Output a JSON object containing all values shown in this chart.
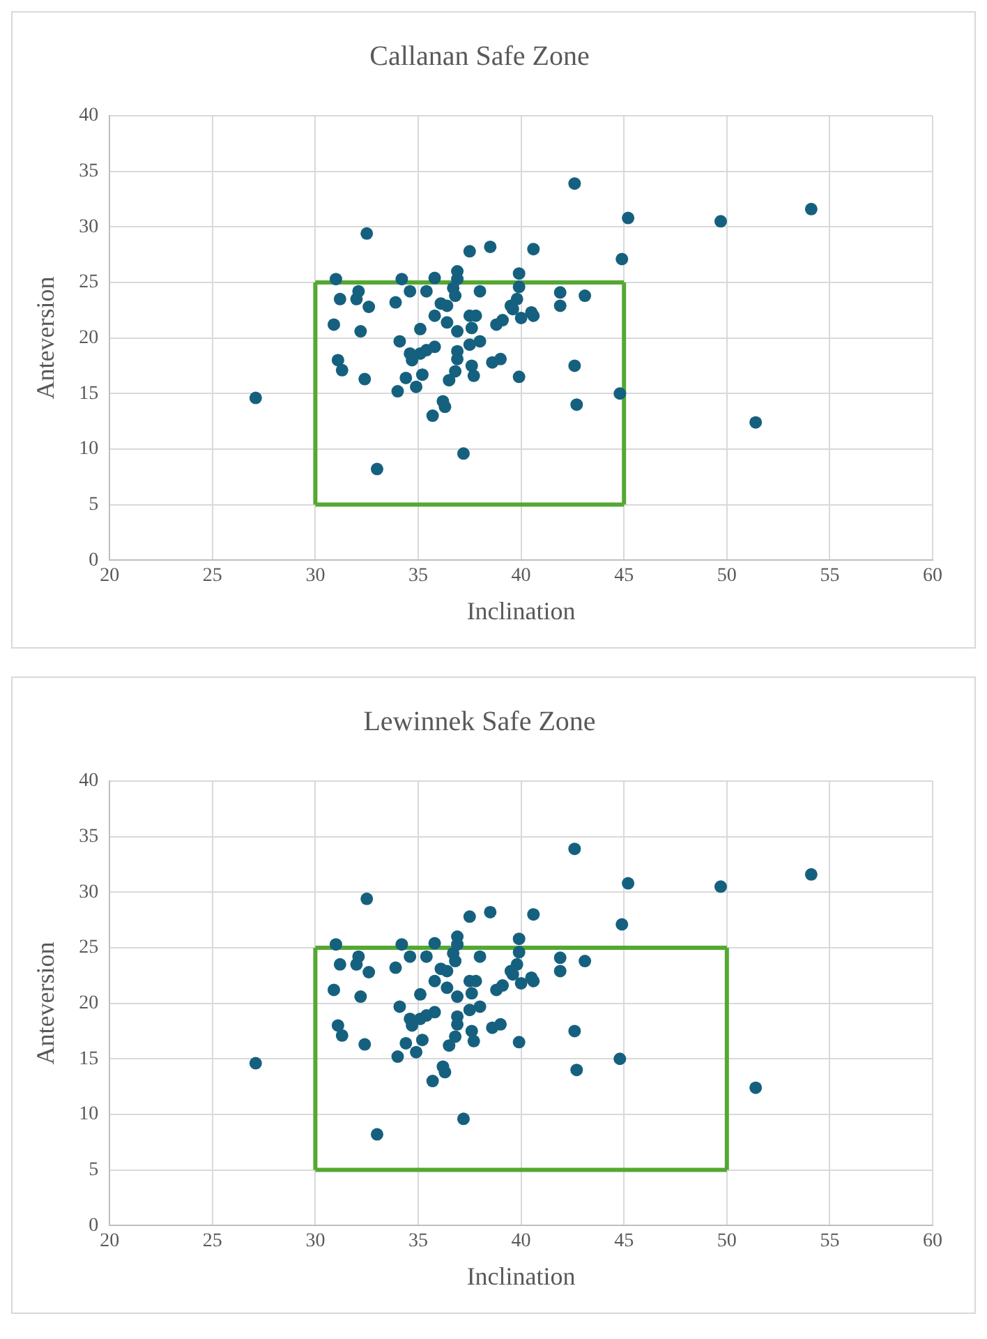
{
  "chart_data": [
    {
      "type": "scatter",
      "title": "Callanan Safe Zone",
      "xlabel": "Inclination",
      "ylabel": "Anteversion",
      "xlim": [
        20,
        60
      ],
      "xticks": [
        20,
        25,
        30,
        35,
        40,
        45,
        50,
        55,
        60
      ],
      "ylim": [
        0,
        40
      ],
      "yticks": [
        0,
        5,
        10,
        15,
        20,
        25,
        30,
        35,
        40
      ],
      "grid": true,
      "legend": false,
      "series": [
        {
          "marker": "circle",
          "color": "#15607f",
          "x": [
            27.1,
            31.0,
            31.2,
            30.9,
            31.1,
            31.3,
            32.5,
            32.1,
            32.0,
            32.6,
            32.2,
            32.4,
            33.0,
            34.2,
            33.9,
            34.6,
            34.1,
            34.6,
            34.7,
            34.4,
            34.0,
            34.9,
            35.2,
            35.1,
            35.1,
            35.4,
            35.8,
            35.4,
            35.8,
            35.8,
            36.1,
            36.4,
            36.4,
            36.2,
            36.3,
            35.7,
            36.5,
            36.8,
            36.9,
            36.9,
            36.9,
            36.7,
            36.8,
            36.9,
            36.9,
            37.5,
            37.5,
            37.8,
            37.6,
            37.5,
            38.0,
            37.6,
            37.7,
            37.2,
            38.0,
            38.5,
            38.6,
            39.0,
            38.8,
            39.1,
            39.5,
            39.6,
            39.8,
            39.9,
            39.9,
            39.9,
            40.0,
            40.5,
            40.6,
            40.6,
            41.9,
            41.9,
            42.6,
            42.6,
            42.7,
            43.1,
            44.8,
            44.9,
            45.2,
            49.7,
            51.4,
            54.1
          ],
          "values": [
            14.6,
            25.3,
            23.5,
            21.2,
            18.0,
            17.1,
            29.4,
            24.2,
            23.5,
            22.8,
            20.6,
            16.3,
            8.2,
            25.3,
            23.2,
            24.2,
            19.7,
            18.6,
            18.0,
            16.4,
            15.2,
            15.6,
            16.7,
            20.8,
            18.6,
            18.9,
            19.2,
            24.2,
            25.4,
            22.0,
            23.1,
            22.9,
            21.4,
            14.3,
            13.8,
            13.0,
            16.2,
            17.0,
            18.8,
            18.1,
            20.6,
            24.5,
            23.8,
            26.0,
            25.3,
            27.8,
            22.0,
            22.0,
            20.9,
            19.4,
            19.7,
            17.5,
            16.6,
            9.6,
            24.2,
            28.2,
            17.8,
            18.1,
            21.2,
            21.6,
            22.9,
            22.6,
            23.5,
            24.6,
            25.8,
            16.5,
            21.8,
            22.3,
            22.0,
            28.0,
            24.1,
            22.9,
            33.9,
            17.5,
            14.0,
            23.8,
            15.0,
            27.1,
            30.8,
            30.5,
            12.4,
            31.6
          ]
        },
        {
          "type": "line",
          "marker": "none",
          "line_style": "solid",
          "color": "#54a832",
          "x": [
            30,
            45
          ],
          "values": [
            5,
            5
          ]
        },
        {
          "type": "line",
          "marker": "none",
          "line_style": "solid",
          "color": "#54a832",
          "x": [
            30,
            45
          ],
          "values": [
            25,
            25
          ]
        },
        {
          "type": "line",
          "marker": "none",
          "line_style": "solid",
          "color": "#54a832",
          "x": [
            30,
            30
          ],
          "values": [
            5,
            25
          ]
        },
        {
          "type": "line",
          "marker": "none",
          "line_style": "solid",
          "color": "#54a832",
          "x": [
            45,
            45
          ],
          "values": [
            5,
            25
          ]
        }
      ]
    },
    {
      "type": "scatter",
      "title": "Lewinnek Safe Zone",
      "xlabel": "Inclination",
      "ylabel": "Anteversion",
      "xlim": [
        20,
        60
      ],
      "xticks": [
        20,
        25,
        30,
        35,
        40,
        45,
        50,
        55,
        60
      ],
      "ylim": [
        0,
        40
      ],
      "yticks": [
        0,
        5,
        10,
        15,
        20,
        25,
        30,
        35,
        40
      ],
      "grid": true,
      "legend": false,
      "series": [
        {
          "marker": "circle",
          "color": "#15607f",
          "x": [
            27.1,
            31.0,
            31.2,
            30.9,
            31.1,
            31.3,
            32.5,
            32.1,
            32.0,
            32.6,
            32.2,
            32.4,
            33.0,
            34.2,
            33.9,
            34.6,
            34.1,
            34.6,
            34.7,
            34.4,
            34.0,
            34.9,
            35.2,
            35.1,
            35.1,
            35.4,
            35.8,
            35.4,
            35.8,
            35.8,
            36.1,
            36.4,
            36.4,
            36.2,
            36.3,
            35.7,
            36.5,
            36.8,
            36.9,
            36.9,
            36.9,
            36.7,
            36.8,
            36.9,
            36.9,
            37.5,
            37.5,
            37.8,
            37.6,
            37.5,
            38.0,
            37.6,
            37.7,
            37.2,
            38.0,
            38.5,
            38.6,
            39.0,
            38.8,
            39.1,
            39.5,
            39.6,
            39.8,
            39.9,
            39.9,
            39.9,
            40.0,
            40.5,
            40.6,
            40.6,
            41.9,
            41.9,
            42.6,
            42.6,
            42.7,
            43.1,
            44.8,
            44.9,
            45.2,
            49.7,
            51.4,
            54.1
          ],
          "values": [
            14.6,
            25.3,
            23.5,
            21.2,
            18.0,
            17.1,
            29.4,
            24.2,
            23.5,
            22.8,
            20.6,
            16.3,
            8.2,
            25.3,
            23.2,
            24.2,
            19.7,
            18.6,
            18.0,
            16.4,
            15.2,
            15.6,
            16.7,
            20.8,
            18.6,
            18.9,
            19.2,
            24.2,
            25.4,
            22.0,
            23.1,
            22.9,
            21.4,
            14.3,
            13.8,
            13.0,
            16.2,
            17.0,
            18.8,
            18.1,
            20.6,
            24.5,
            23.8,
            26.0,
            25.3,
            27.8,
            22.0,
            22.0,
            20.9,
            19.4,
            19.7,
            17.5,
            16.6,
            9.6,
            24.2,
            28.2,
            17.8,
            18.1,
            21.2,
            21.6,
            22.9,
            22.6,
            23.5,
            24.6,
            25.8,
            16.5,
            21.8,
            22.3,
            22.0,
            28.0,
            24.1,
            22.9,
            33.9,
            17.5,
            14.0,
            23.8,
            15.0,
            27.1,
            30.8,
            30.5,
            12.4,
            31.6
          ]
        },
        {
          "type": "line",
          "marker": "none",
          "line_style": "solid",
          "color": "#54a832",
          "x": [
            30,
            50
          ],
          "values": [
            5,
            5
          ]
        },
        {
          "type": "line",
          "marker": "none",
          "line_style": "solid",
          "color": "#54a832",
          "x": [
            30,
            50
          ],
          "values": [
            25,
            25
          ]
        },
        {
          "type": "line",
          "marker": "none",
          "line_style": "solid",
          "color": "#54a832",
          "x": [
            30,
            30
          ],
          "values": [
            5,
            25
          ]
        },
        {
          "type": "line",
          "marker": "none",
          "line_style": "solid",
          "color": "#54a832",
          "x": [
            50,
            50
          ],
          "values": [
            5,
            25
          ]
        }
      ]
    }
  ]
}
